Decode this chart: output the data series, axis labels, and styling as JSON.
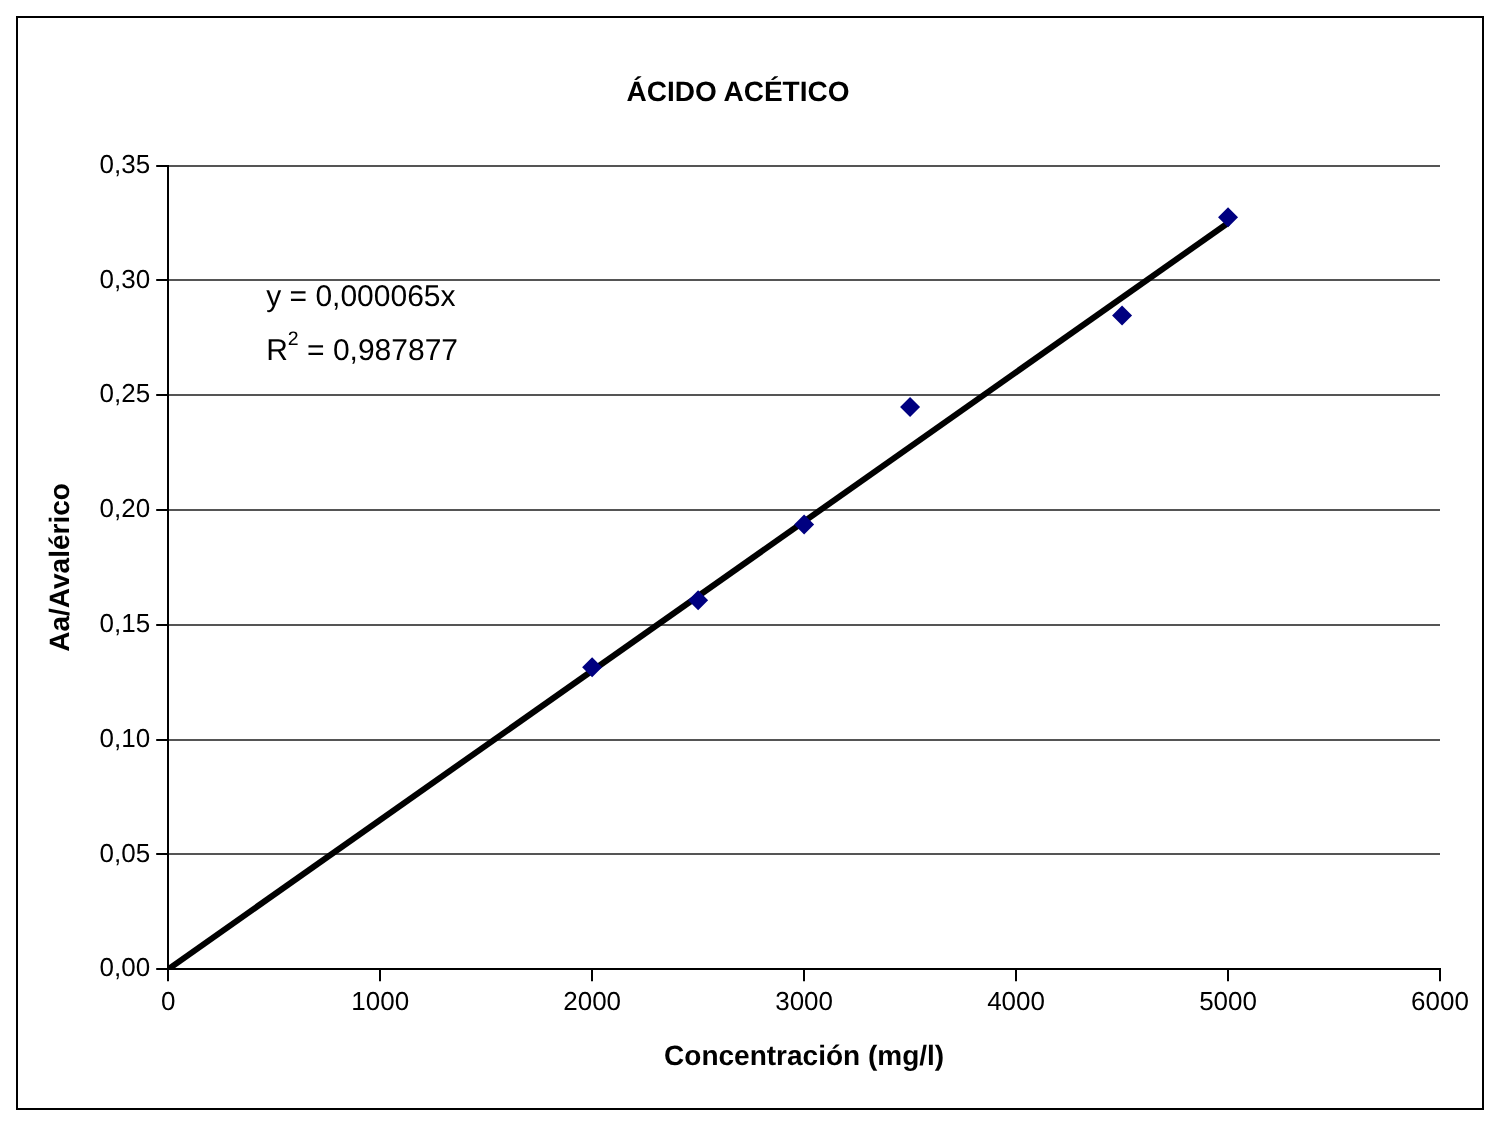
{
  "chart_data": {
    "type": "scatter",
    "title": "ÁCIDO ACÉTICO",
    "xlabel": "Concentración (mg/l)",
    "ylabel": "Aa/Avalérico",
    "x": [
      2000,
      2500,
      3000,
      3500,
      4500,
      5000
    ],
    "series": [
      {
        "color": "#000080",
        "values": [
          0.1315,
          0.1607,
          0.1937,
          0.2449,
          0.2847,
          0.3275
        ],
        "marker": "diamond"
      },
      {
        "type": "line",
        "color": "#000000",
        "x": [
          0,
          5000
        ],
        "values": [
          0,
          0.325
        ],
        "marker": "none",
        "line_style": "solid"
      }
    ],
    "annotations": [
      "y = 0,000065x",
      "R$^{2}$ = 0,987877"
    ],
    "xlim": [
      0,
      6000
    ],
    "xticks": [
      0,
      1000,
      2000,
      3000,
      4000,
      5000,
      6000
    ],
    "ylim": [
      0,
      0.35
    ],
    "yticks": [
      {
        "value": 0,
        "label": "0,00"
      },
      {
        "value": 0.05,
        "label": "0,05"
      },
      {
        "value": 0.1,
        "label": "0,10"
      },
      {
        "value": 0.15,
        "label": "0,15"
      },
      {
        "value": 0.2,
        "label": "0,20"
      },
      {
        "value": 0.25,
        "label": "0,25"
      },
      {
        "value": 0.3,
        "label": "0,30"
      },
      {
        "value": 0.35,
        "label": "0,35"
      }
    ],
    "grid": "y",
    "legend": false
  }
}
